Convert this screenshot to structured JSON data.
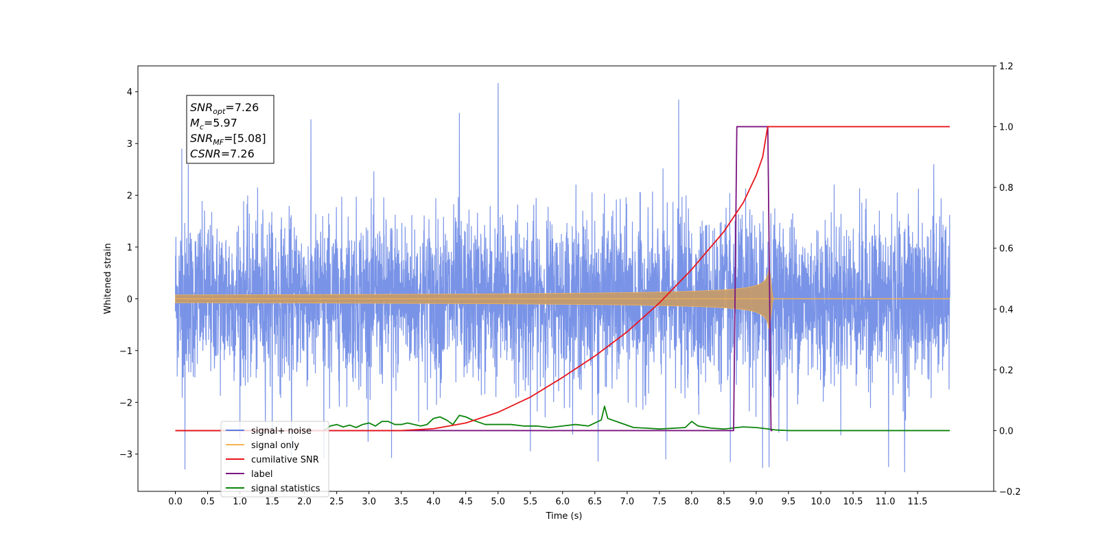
{
  "chart_data": {
    "type": "line",
    "xlabel": "Time (s)",
    "ylabel": "Whitened strain",
    "xlim": [
      -0.58,
      12.68
    ],
    "ylim": [
      -3.72,
      4.5
    ],
    "y2lim": [
      -0.2,
      1.2
    ],
    "x_ticks": [
      "0.0",
      "0.5",
      "1.0",
      "1.5",
      "2.0",
      "2.5",
      "3.0",
      "3.5",
      "4.0",
      "4.5",
      "5.0",
      "5.5",
      "6.0",
      "6.5",
      "7.0",
      "7.5",
      "8.0",
      "8.5",
      "9.0",
      "9.5",
      "10.0",
      "10.5",
      "11.0",
      "11.5"
    ],
    "y_ticks": [
      "−3",
      "−2",
      "−1",
      "0",
      "1",
      "2",
      "3",
      "4"
    ],
    "y2_ticks": [
      "−0.2",
      "0.0",
      "0.2",
      "0.4",
      "0.6",
      "0.8",
      "1.0",
      "1.2"
    ],
    "annotation": {
      "lines": [
        {
          "base": "SNR",
          "sub": "opt",
          "rest": "=7.26"
        },
        {
          "base": "M",
          "sub": "c",
          "rest": "=5.97"
        },
        {
          "base": "SNR",
          "sub": "MF",
          "rest": "=[5.08]"
        },
        {
          "base": "CSNR",
          "sub": "",
          "rest": "=7.26"
        }
      ]
    },
    "series": [
      {
        "name": "signal+ noise",
        "color": "#5b7be0",
        "axis": "left",
        "x_range": [
          0.0,
          12.0
        ],
        "noise_sigma": 0.78,
        "spikes": [
          {
            "x": 0.1,
            "y": 2.9
          },
          {
            "x": 0.2,
            "y": 2.6
          },
          {
            "x": 0.15,
            "y": -3.25
          },
          {
            "x": 1.8,
            "y": -3.05
          },
          {
            "x": 2.1,
            "y": 3.45
          },
          {
            "x": 2.3,
            "y": -3.1
          },
          {
            "x": 3.35,
            "y": -3.05
          },
          {
            "x": 4.4,
            "y": 3.55
          },
          {
            "x": 5.0,
            "y": 4.12
          },
          {
            "x": 5.5,
            "y": -3.0
          },
          {
            "x": 6.55,
            "y": -3.15
          },
          {
            "x": 7.6,
            "y": -3.05
          },
          {
            "x": 7.8,
            "y": 3.9
          },
          {
            "x": 8.6,
            "y": -3.1
          },
          {
            "x": 9.1,
            "y": -3.2
          },
          {
            "x": 9.2,
            "y": -3.15
          },
          {
            "x": 11.05,
            "y": -3.25
          },
          {
            "x": 11.3,
            "y": -3.35
          },
          {
            "x": 11.75,
            "y": 2.6
          },
          {
            "x": 9.48,
            "y": -2.75
          }
        ]
      },
      {
        "name": "signal only",
        "color": "#f5b451",
        "axis": "left",
        "x_range": [
          0.0,
          12.0
        ],
        "merger_time": 9.2,
        "peak_amplitude": 0.62
      },
      {
        "name": "cumilative SNR",
        "color": "#e8141a",
        "axis": "right",
        "points": [
          [
            0.0,
            0.0
          ],
          [
            3.5,
            0.0
          ],
          [
            4.0,
            0.006
          ],
          [
            4.5,
            0.025
          ],
          [
            5.0,
            0.06
          ],
          [
            5.5,
            0.11
          ],
          [
            6.0,
            0.175
          ],
          [
            6.5,
            0.245
          ],
          [
            7.0,
            0.325
          ],
          [
            7.5,
            0.42
          ],
          [
            8.0,
            0.53
          ],
          [
            8.5,
            0.655
          ],
          [
            8.8,
            0.75
          ],
          [
            9.0,
            0.84
          ],
          [
            9.1,
            0.9
          ],
          [
            9.17,
            0.99
          ],
          [
            9.18,
            1.0
          ],
          [
            12.0,
            1.0
          ]
        ]
      },
      {
        "name": "label",
        "color": "#7a1380",
        "axis": "right",
        "points": [
          [
            0.0,
            0.0
          ],
          [
            8.65,
            0.0
          ],
          [
            8.7,
            1.0
          ],
          [
            9.18,
            1.0
          ],
          [
            9.23,
            0.0
          ],
          [
            9.25,
            0.0
          ]
        ]
      },
      {
        "name": "signal statistics",
        "color": "#0a840a",
        "axis": "right",
        "points": [
          [
            0.0,
            0.0
          ],
          [
            2.3,
            0.0
          ],
          [
            2.4,
            0.015
          ],
          [
            2.5,
            0.02
          ],
          [
            2.6,
            0.012
          ],
          [
            2.7,
            0.018
          ],
          [
            2.8,
            0.01
          ],
          [
            2.9,
            0.02
          ],
          [
            3.0,
            0.025
          ],
          [
            3.1,
            0.015
          ],
          [
            3.2,
            0.03
          ],
          [
            3.3,
            0.03
          ],
          [
            3.4,
            0.02
          ],
          [
            3.5,
            0.02
          ],
          [
            3.6,
            0.025
          ],
          [
            3.7,
            0.02
          ],
          [
            3.8,
            0.015
          ],
          [
            3.9,
            0.02
          ],
          [
            4.0,
            0.04
          ],
          [
            4.1,
            0.045
          ],
          [
            4.2,
            0.035
          ],
          [
            4.3,
            0.02
          ],
          [
            4.4,
            0.05
          ],
          [
            4.5,
            0.045
          ],
          [
            4.6,
            0.035
          ],
          [
            4.8,
            0.02
          ],
          [
            5.0,
            0.02
          ],
          [
            5.2,
            0.02
          ],
          [
            5.4,
            0.015
          ],
          [
            5.6,
            0.015
          ],
          [
            5.8,
            0.01
          ],
          [
            6.0,
            0.015
          ],
          [
            6.2,
            0.02
          ],
          [
            6.4,
            0.015
          ],
          [
            6.6,
            0.035
          ],
          [
            6.65,
            0.08
          ],
          [
            6.7,
            0.04
          ],
          [
            6.9,
            0.025
          ],
          [
            7.1,
            0.01
          ],
          [
            7.3,
            0.008
          ],
          [
            7.5,
            0.005
          ],
          [
            7.9,
            0.01
          ],
          [
            8.0,
            0.03
          ],
          [
            8.1,
            0.015
          ],
          [
            8.3,
            0.008
          ],
          [
            8.5,
            0.005
          ],
          [
            8.7,
            0.01
          ],
          [
            8.8,
            0.012
          ],
          [
            9.0,
            0.01
          ],
          [
            9.2,
            0.005
          ],
          [
            9.3,
            0.002
          ],
          [
            9.5,
            0.0
          ],
          [
            12.0,
            0.0
          ]
        ]
      }
    ],
    "legend": {
      "placement": "lower-left",
      "entries": [
        {
          "label": "signal+ noise",
          "color": "#5b7be0"
        },
        {
          "label": "signal only",
          "color": "#f5b451"
        },
        {
          "label": "cumilative SNR",
          "color": "#e8141a"
        },
        {
          "label": "label",
          "color": "#7a1380"
        },
        {
          "label": "signal statistics",
          "color": "#0a840a"
        }
      ]
    }
  }
}
